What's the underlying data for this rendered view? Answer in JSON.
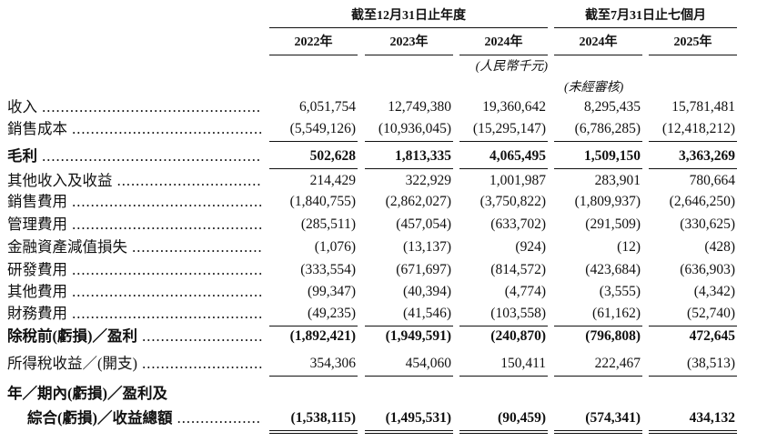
{
  "header": {
    "groups": [
      "截至12月31日止年度",
      "截至7月31日止七個月"
    ],
    "columns": [
      "2022年",
      "2023年",
      "2024年",
      "2024年",
      "2025年"
    ],
    "notes": [
      "(人民幣千元)",
      "(未經審核)"
    ]
  },
  "table": {
    "rows": [
      {
        "label": "收入",
        "values": [
          "6,051,754",
          "12,749,380",
          "19,360,642",
          "8,295,435",
          "15,781,481"
        ]
      },
      {
        "label": "銷售成本",
        "values": [
          "(5,549,126)",
          "(10,936,045)",
          "(15,295,147)",
          "(6,786,285)",
          "(12,418,212)"
        ]
      },
      {
        "label": "毛利",
        "values": [
          "502,628",
          "1,813,335",
          "4,065,495",
          "1,509,150",
          "3,363,269"
        ]
      },
      {
        "label": "其他收入及收益",
        "values": [
          "214,429",
          "322,929",
          "1,001,987",
          "283,901",
          "780,664"
        ]
      },
      {
        "label": "銷售費用",
        "values": [
          "(1,840,755)",
          "(2,862,027)",
          "(3,750,822)",
          "(1,809,937)",
          "(2,646,250)"
        ]
      },
      {
        "label": "管理費用",
        "values": [
          "(285,511)",
          "(457,054)",
          "(633,702)",
          "(291,509)",
          "(330,625)"
        ]
      },
      {
        "label": "金融資產減值損失",
        "values": [
          "(1,076)",
          "(13,137)",
          "(924)",
          "(12)",
          "(428)"
        ]
      },
      {
        "label": "研發費用",
        "values": [
          "(333,554)",
          "(671,697)",
          "(814,572)",
          "(423,684)",
          "(636,903)"
        ]
      },
      {
        "label": "其他費用",
        "values": [
          "(99,347)",
          "(40,394)",
          "(4,774)",
          "(3,555)",
          "(4,342)"
        ]
      },
      {
        "label": "財務費用",
        "values": [
          "(49,235)",
          "(41,546)",
          "(103,558)",
          "(61,162)",
          "(52,740)"
        ]
      },
      {
        "label": "除稅前(虧損)／盈利",
        "values": [
          "(1,892,421)",
          "(1,949,591)",
          "(240,870)",
          "(796,808)",
          "472,645"
        ]
      },
      {
        "label": "所得稅收益／(開支)",
        "values": [
          "354,306",
          "454,060",
          "150,411",
          "222,467",
          "(38,513)"
        ]
      },
      {
        "label": [
          "年／期內(虧損)／盈利及",
          "綜合(虧損)／收益總額"
        ],
        "values": [
          "(1,538,115)",
          "(1,495,531)",
          "(90,459)",
          "(574,341)",
          "434,132"
        ]
      }
    ]
  }
}
